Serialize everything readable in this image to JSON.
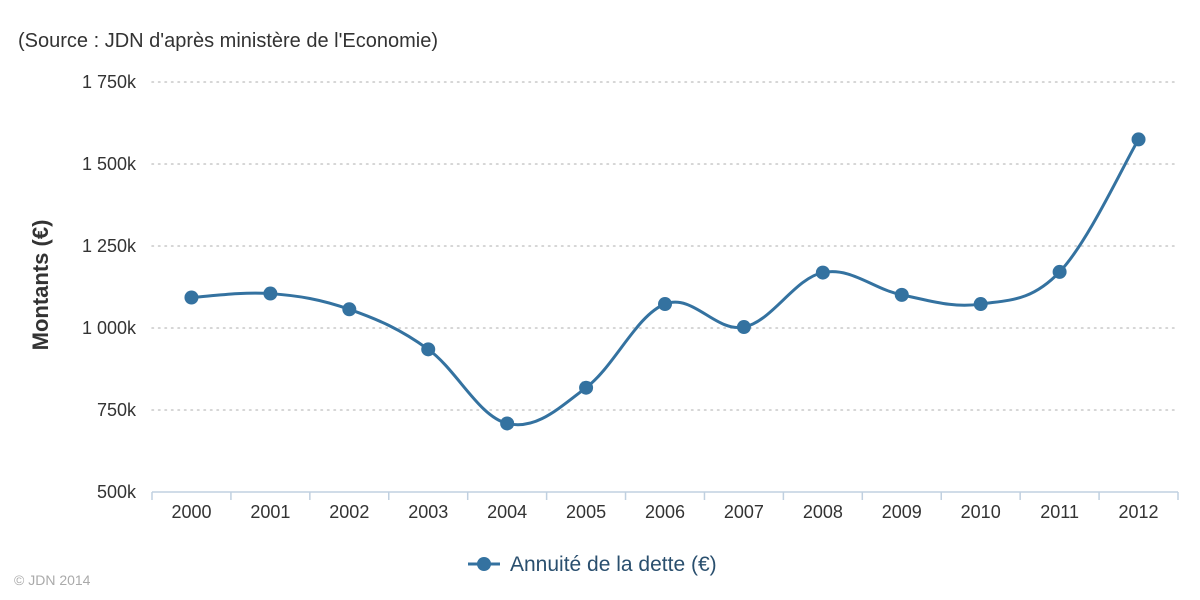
{
  "subtitle": "(Source : JDN d'après ministère de l'Economie)",
  "credit": "© JDN 2014",
  "colors": {
    "series": "#3472a0",
    "grid": "#c8c8c8",
    "axis": "#c0d0e0"
  },
  "chart_data": {
    "type": "line",
    "title": "",
    "subtitle": "(Source : JDN d'après ministère de l'Economie)",
    "xlabel": "",
    "ylabel": "Montants (€)",
    "categories": [
      "2000",
      "2001",
      "2002",
      "2003",
      "2004",
      "2005",
      "2006",
      "2007",
      "2008",
      "2009",
      "2010",
      "2011",
      "2012"
    ],
    "series": [
      {
        "name": "Annuité de la dette (€)",
        "values": [
          1093000,
          1105000,
          1057000,
          935000,
          709000,
          818000,
          1073000,
          1003000,
          1169000,
          1101000,
          1073000,
          1171000,
          1575000
        ]
      }
    ],
    "ylim": [
      500000,
      1750000
    ],
    "yticks": [
      500000,
      750000,
      1000000,
      1250000,
      1500000,
      1750000
    ],
    "ytick_labels": [
      "500k",
      "750k",
      "1 000k",
      "1 250k",
      "1 500k",
      "1 750k"
    ],
    "grid": true,
    "legend": "bottom-center"
  }
}
